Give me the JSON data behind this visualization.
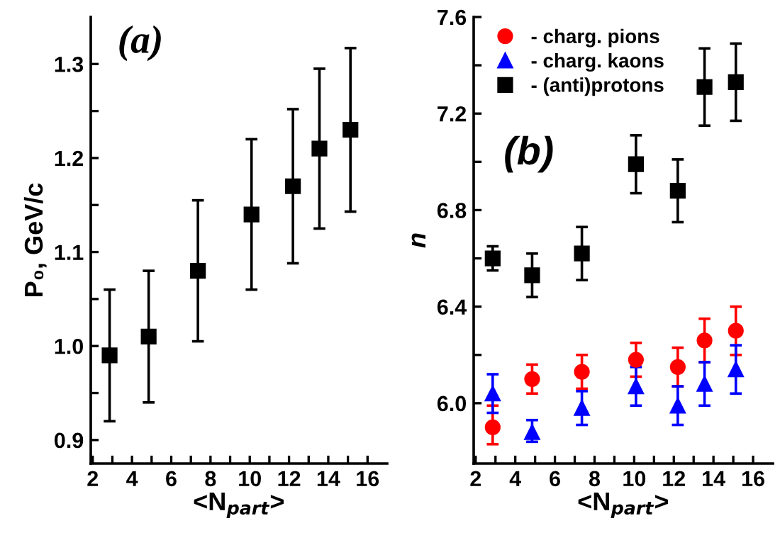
{
  "chart_data": [
    {
      "type": "scatter",
      "xlabel": "<N$_{part}$>",
      "ylabel": "P₀, GeV/c",
      "annotations": [
        "(a)"
      ],
      "xlim": [
        1.9,
        17
      ],
      "ylim": [
        0.875,
        1.35
      ],
      "xticks": [
        2,
        {
          "value": 3,
          "label": null
        },
        4,
        {
          "value": 5,
          "label": null
        },
        6,
        {
          "value": 7,
          "label": null
        },
        8,
        {
          "value": 9,
          "label": null
        },
        10,
        {
          "value": 11,
          "label": null
        },
        12,
        {
          "value": 13,
          "label": null
        },
        14,
        {
          "value": 15,
          "label": null
        },
        16
      ],
      "yticks": [
        {
          "value": 0.9,
          "label": "0.9"
        },
        {
          "value": 0.95,
          "label": null
        },
        {
          "value": 1.0,
          "label": "1.0"
        },
        {
          "value": 1.05,
          "label": null
        },
        {
          "value": 1.1,
          "label": "1.1"
        },
        {
          "value": 1.15,
          "label": null
        },
        {
          "value": 1.2,
          "label": "1.2"
        },
        {
          "value": 1.25,
          "label": null
        },
        {
          "value": 1.3,
          "label": "1.3"
        }
      ],
      "marker": "square",
      "legend": false,
      "grid": false,
      "series": [
        {
          "color": "#000000",
          "x": [
            2.86,
            4.85,
            7.36,
            10.09,
            12.2,
            13.55,
            15.13
          ],
          "values": [
            0.99,
            1.01,
            1.08,
            1.14,
            1.17,
            1.21,
            1.23
          ],
          "errors": [
            [
              0.92,
              1.06
            ],
            [
              0.94,
              1.08
            ],
            [
              1.005,
              1.155
            ],
            [
              1.06,
              1.22
            ],
            [
              1.088,
              1.252
            ],
            [
              1.125,
              1.295
            ],
            [
              1.143,
              1.317
            ]
          ]
        }
      ]
    },
    {
      "type": "scatter",
      "xlabel": "<N$_{part}$>",
      "ylabel": "n",
      "annotations": [
        "(b)"
      ],
      "xlim": [
        1.9,
        17
      ],
      "ylim": [
        5.75,
        7.6
      ],
      "xticks": [
        2,
        {
          "value": 3,
          "label": null
        },
        4,
        {
          "value": 5,
          "label": null
        },
        6,
        {
          "value": 7,
          "label": null
        },
        8,
        {
          "value": 9,
          "label": null
        },
        10,
        {
          "value": 11,
          "label": null
        },
        12,
        {
          "value": 13,
          "label": null
        },
        14,
        {
          "value": 15,
          "label": null
        },
        16
      ],
      "yticks": [
        {
          "value": 6.0,
          "label": "6.0"
        },
        {
          "value": 6.2,
          "label": null
        },
        {
          "value": 6.4,
          "label": "6.4"
        },
        {
          "value": 6.6,
          "label": null
        },
        {
          "value": 6.8,
          "label": "6.8"
        },
        {
          "value": 7.0,
          "label": null
        },
        {
          "value": 7.2,
          "label": "7.2"
        },
        {
          "value": 7.4,
          "label": null
        },
        {
          "value": 7.6,
          "label": "7.6"
        }
      ],
      "legend": "top left",
      "grid": false,
      "series": [
        {
          "name": "- charg. pions",
          "color": "#ff0000",
          "marker": "circle",
          "x": [
            2.86,
            4.85,
            7.36,
            10.09,
            12.2,
            13.55,
            15.13
          ],
          "values": [
            5.9,
            6.1,
            6.13,
            6.18,
            6.15,
            6.26,
            6.3
          ],
          "errors": [
            [
              5.83,
              5.99
            ],
            [
              6.04,
              6.16
            ],
            [
              6.06,
              6.2
            ],
            [
              6.11,
              6.25
            ],
            [
              6.07,
              6.23
            ],
            [
              6.17,
              6.35
            ],
            [
              6.2,
              6.4
            ]
          ]
        },
        {
          "name": "- charg. kaons",
          "color": "#0000ff",
          "marker": "triangle",
          "x": [
            2.86,
            4.85,
            7.36,
            10.09,
            12.2,
            13.55,
            15.13
          ],
          "values": [
            6.04,
            5.88,
            5.98,
            6.07,
            5.99,
            6.08,
            6.14
          ],
          "errors": [
            [
              5.96,
              6.12
            ],
            [
              5.84,
              5.93
            ],
            [
              5.91,
              6.05
            ],
            [
              5.99,
              6.15
            ],
            [
              5.91,
              6.07
            ],
            [
              5.99,
              6.17
            ],
            [
              6.04,
              6.24
            ]
          ]
        },
        {
          "name": "- (anti)protons",
          "color": "#000000",
          "marker": "square",
          "x": [
            2.86,
            4.85,
            7.36,
            10.09,
            12.2,
            13.55,
            15.13
          ],
          "values": [
            6.6,
            6.53,
            6.62,
            6.99,
            6.88,
            7.31,
            7.33
          ],
          "errors": [
            [
              6.55,
              6.65
            ],
            [
              6.44,
              6.62
            ],
            [
              6.51,
              6.73
            ],
            [
              6.87,
              7.11
            ],
            [
              6.75,
              7.01
            ],
            [
              7.15,
              7.47
            ],
            [
              7.17,
              7.49
            ]
          ]
        }
      ]
    }
  ]
}
